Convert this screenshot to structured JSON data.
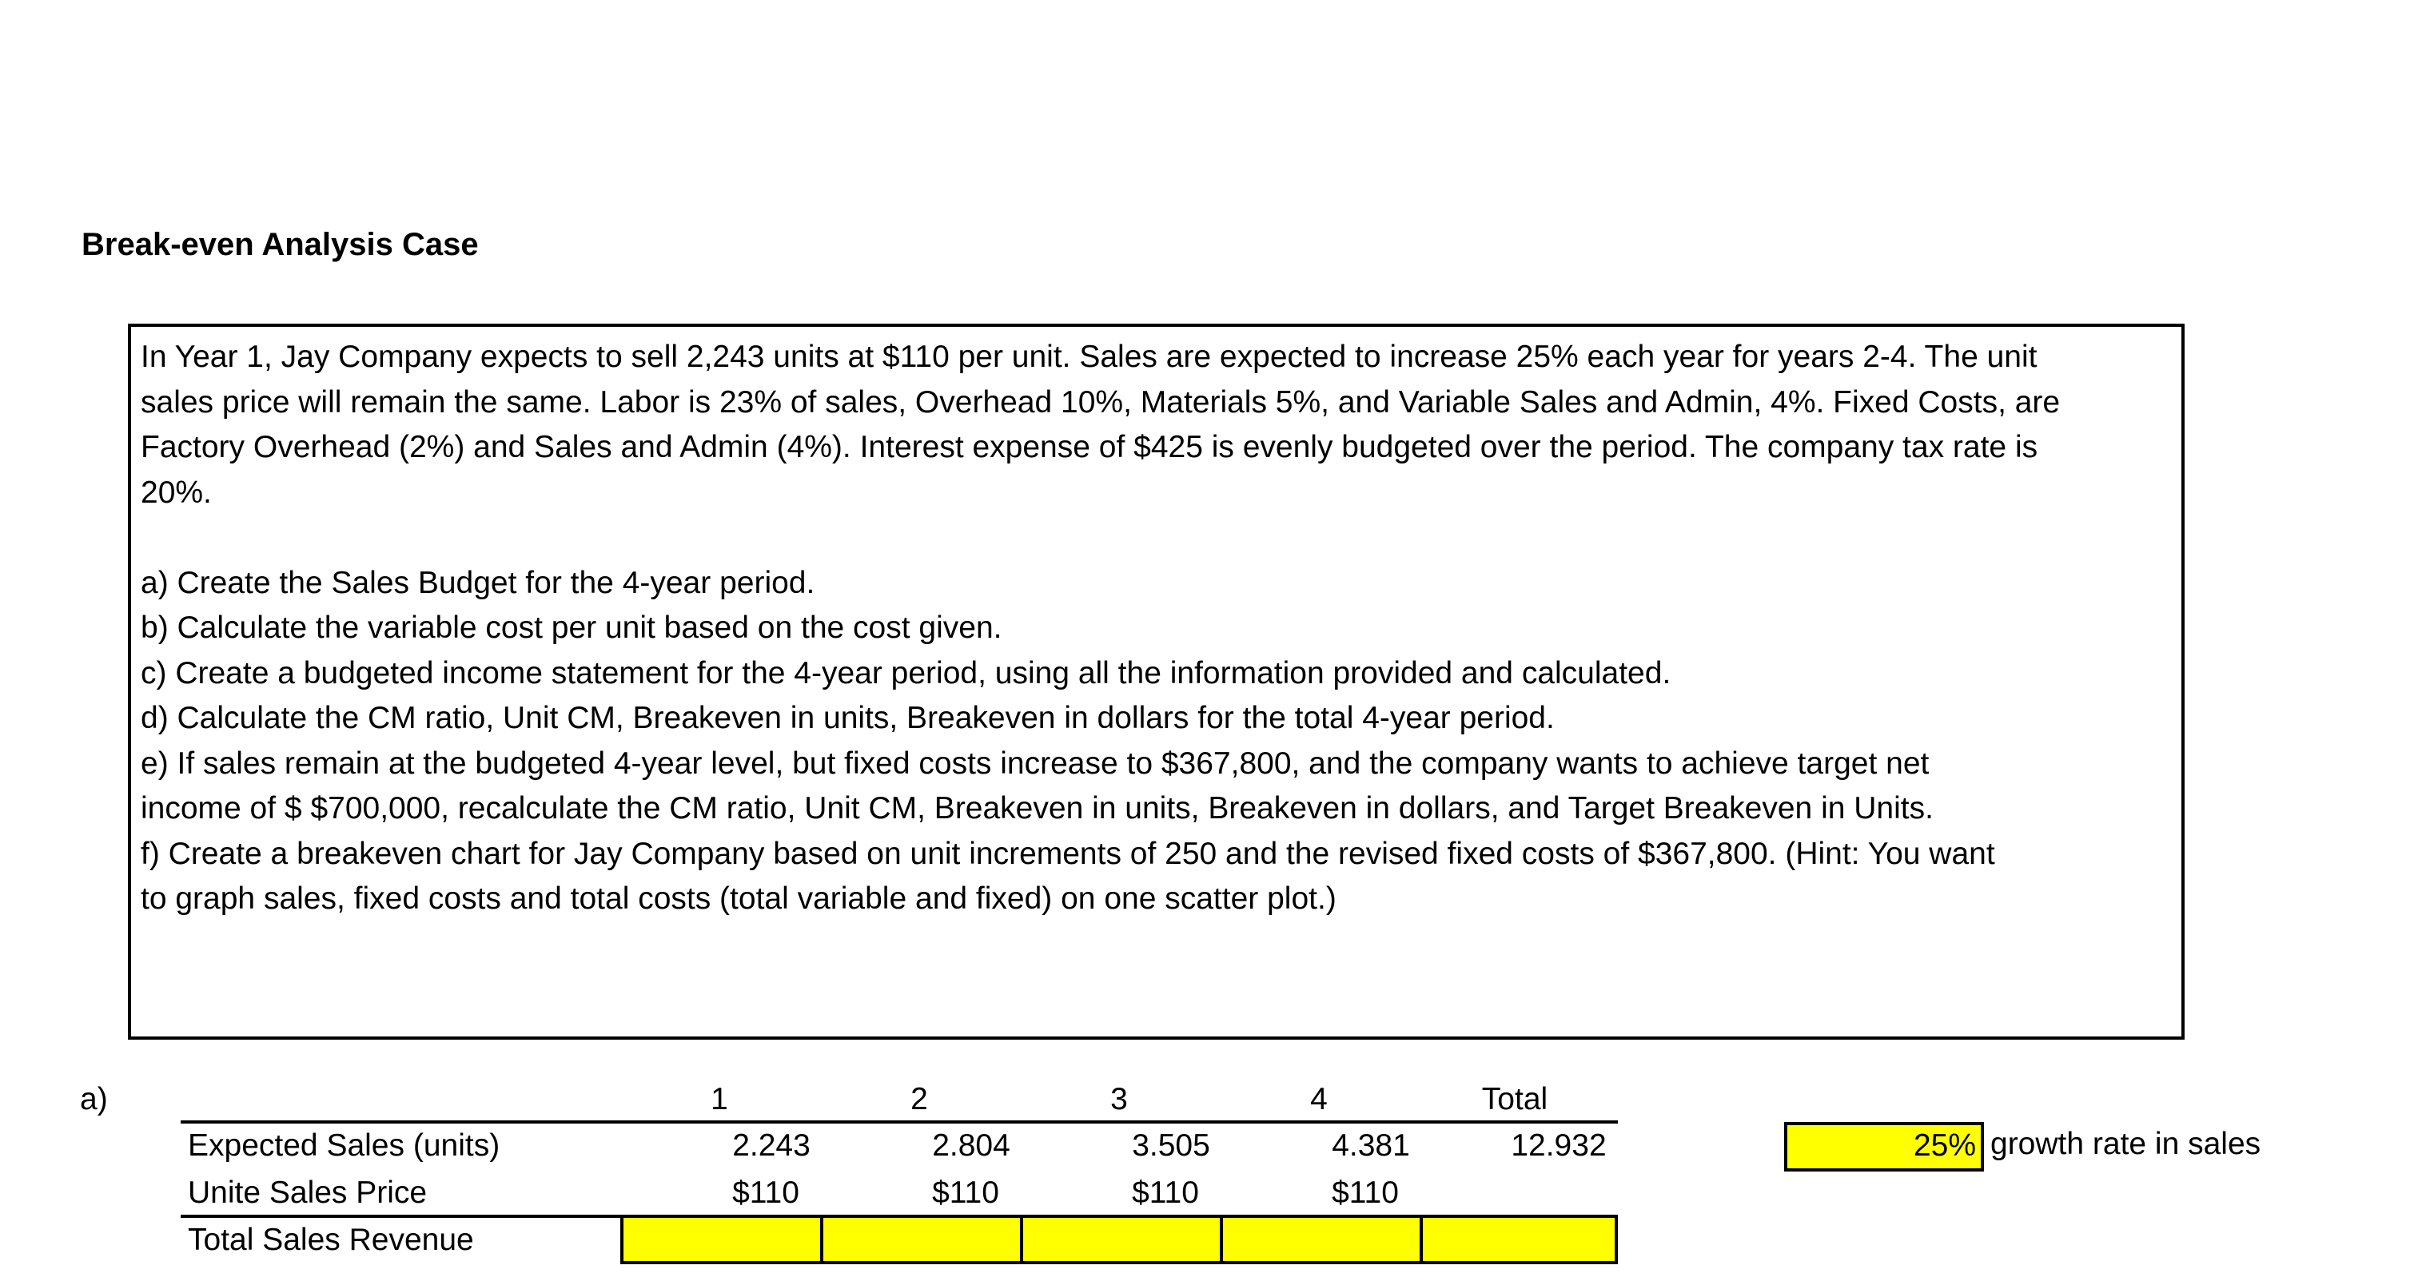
{
  "title": "Break-even Analysis Case",
  "case": {
    "paragraph_lines": [
      "In Year 1, Jay Company expects to sell 2,243 units at $110 per unit.  Sales are expected to increase 25% each year for years 2-4.  The unit",
      "sales price will remain the same.  Labor is 23% of sales, Overhead 10%, Materials 5%, and Variable Sales and Admin, 4%.  Fixed Costs, are",
      "Factory Overhead (2%) and Sales and Admin (4%).  Interest expense of $425 is evenly budgeted over the period.  The company tax rate is",
      "20%."
    ],
    "questions": [
      "a)  Create the Sales Budget for the 4-year period.",
      "b)  Calculate the variable cost per unit based on the cost given.",
      "c)  Create a budgeted income statement for the 4-year period, using all the information provided and calculated.",
      "d)  Calculate the CM ratio, Unit CM, Breakeven in units, Breakeven in dollars for the total 4-year period.",
      "e)  If sales remain at the budgeted 4-year level, but fixed costs increase to $367,800, and the company wants to achieve target net",
      "income of $ $700,000, recalculate the CM ratio, Unit CM, Breakeven in units, Breakeven in dollars, and Target Breakeven in Units.",
      "f)  Create a breakeven chart for Jay Company based on unit increments of 250 and the revised fixed costs of $367,800.  (Hint: You want",
      "to graph sales, fixed costs and total costs (total variable and fixed) on one scatter plot.)"
    ]
  },
  "sales_budget": {
    "section_label": "a)",
    "columns": [
      "1",
      "2",
      "3",
      "4",
      "Total"
    ],
    "rows": [
      {
        "label": "Expected Sales (units)",
        "values": [
          "2.243",
          "2.804",
          "3.505",
          "4.381",
          "12.932"
        ]
      },
      {
        "label": "Unite Sales Price",
        "values": [
          "$110",
          "$110",
          "$110",
          "$110",
          ""
        ]
      },
      {
        "label": "Total Sales Revenue",
        "values": [
          "",
          "",
          "",
          "",
          ""
        ]
      }
    ]
  },
  "growth": {
    "value": "25%",
    "label": "growth rate in sales"
  },
  "colors": {
    "input_cell": "#ffff00",
    "border": "#000000"
  }
}
